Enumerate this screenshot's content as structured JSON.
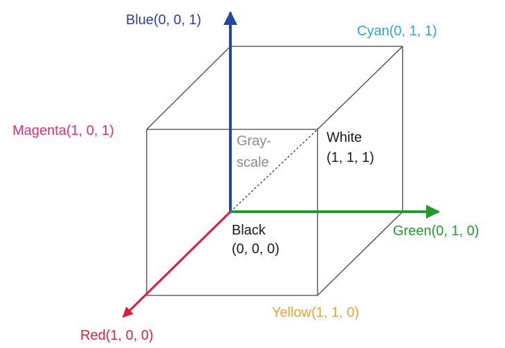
{
  "labels": {
    "blue": "Blue(0, 0, 1)",
    "cyan": "Cyan(0, 1, 1)",
    "magenta": "Magenta(1, 0, 1)",
    "white_line1": "White",
    "white_line2": "(1, 1, 1)",
    "gray_line1": "Gray-",
    "gray_line2": "scale",
    "black_line1": "Black",
    "black_line2": "(0, 0, 0)",
    "green": "Green(0, 1, 0)",
    "yellow": "Yellow(1, 1, 0)",
    "red": "Red(1, 0, 0)"
  },
  "colors": {
    "edge": "#444444",
    "diagonal": "#222222",
    "blue_axis": "#27469c",
    "green_axis": "#1f9a2e",
    "red_axis": "#e3183a",
    "blue_text": "#2d3f9a",
    "cyan_text": "#2ea3d9",
    "magenta_text": "#d9307e",
    "white_text": "#1a1a1a",
    "gray_text": "#8c8c8c",
    "black_text": "#1a1a1a",
    "green_text": "#1f9a2e",
    "yellow_text": "#e8a23a",
    "red_text": "#d9243a"
  }
}
